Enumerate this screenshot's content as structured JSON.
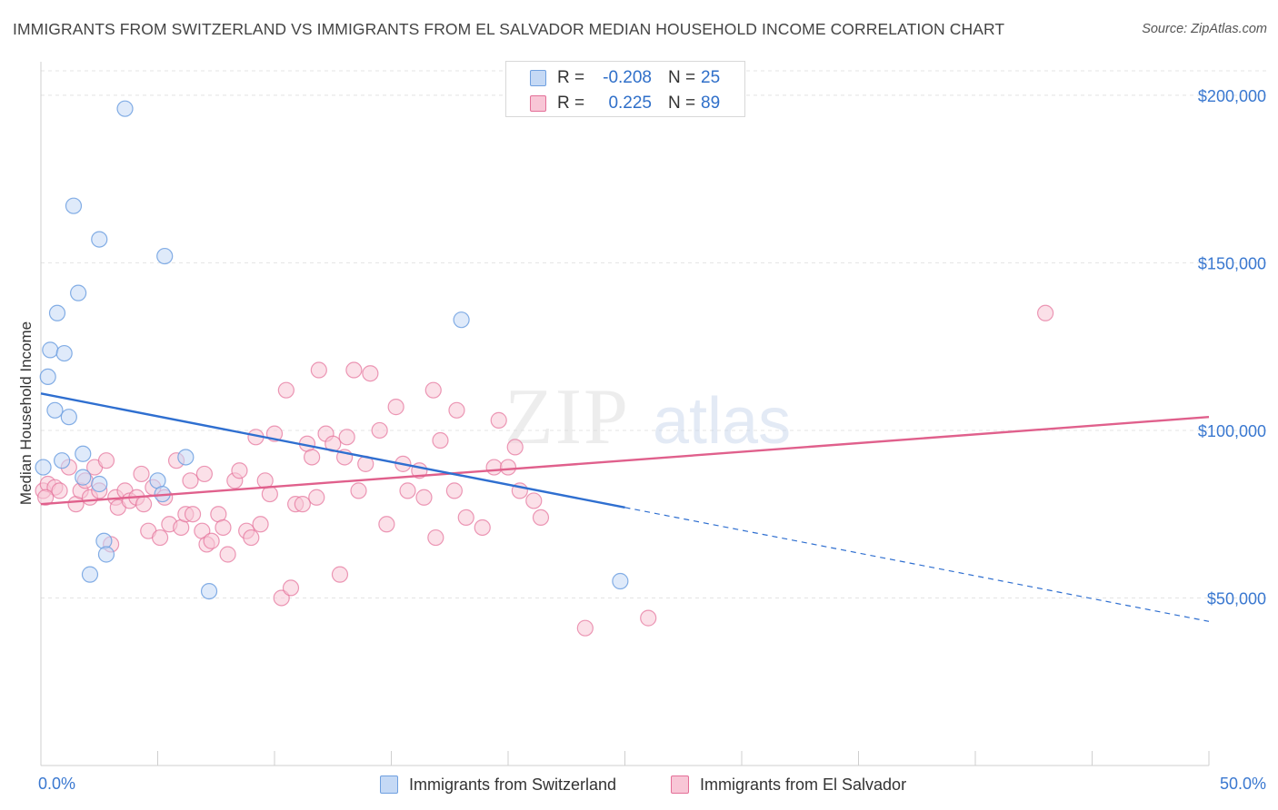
{
  "header": {
    "title": "IMMIGRANTS FROM SWITZERLAND VS IMMIGRANTS FROM EL SALVADOR MEDIAN HOUSEHOLD INCOME CORRELATION CHART",
    "source": "Source: ZipAtlas.com"
  },
  "watermark": {
    "zip": "ZIP",
    "atlas": "atlas"
  },
  "legend": {
    "r_label": "R =",
    "n_label": "N =",
    "series": [
      {
        "name": "Immigrants from Switzerland",
        "r": "-0.208",
        "n": "25"
      },
      {
        "name": "Immigrants from El Salvador",
        "r": "0.225",
        "n": "89"
      }
    ]
  },
  "colors": {
    "switzerland": "#6fa0e0",
    "switzerland_fill": "#c5d9f5",
    "el_salvador": "#e46f98",
    "el_salvador_fill": "#f8c6d6",
    "blue_line": "#2f6fd0",
    "pink_line": "#e0608c",
    "tick_label": "#3a78d0"
  },
  "chart_data": {
    "type": "scatter",
    "title": "IMMIGRANTS FROM SWITZERLAND VS IMMIGRANTS FROM EL SALVADOR MEDIAN HOUSEHOLD INCOME CORRELATION CHART",
    "xlabel": "",
    "ylabel": "Median Household Income",
    "xlim": [
      0,
      50
    ],
    "ylim": [
      0,
      210000
    ],
    "x_tick_labels": [
      "0.0%",
      "50.0%"
    ],
    "y_ticks": [
      50000,
      100000,
      150000,
      200000
    ],
    "y_tick_labels": [
      "$50,000",
      "$100,000",
      "$150,000",
      "$200,000"
    ],
    "grid": true,
    "legend_position": "top-center",
    "series": [
      {
        "name": "Immigrants from Switzerland",
        "r": -0.208,
        "n": 25,
        "points": [
          [
            0.1,
            89000
          ],
          [
            0.3,
            116000
          ],
          [
            0.4,
            124000
          ],
          [
            0.6,
            106000
          ],
          [
            0.7,
            135000
          ],
          [
            0.9,
            91000
          ],
          [
            1.0,
            123000
          ],
          [
            1.2,
            104000
          ],
          [
            1.4,
            167000
          ],
          [
            1.6,
            141000
          ],
          [
            1.8,
            93000
          ],
          [
            1.8,
            86000
          ],
          [
            2.1,
            57000
          ],
          [
            2.5,
            84000
          ],
          [
            2.5,
            157000
          ],
          [
            2.7,
            67000
          ],
          [
            2.8,
            63000
          ],
          [
            3.6,
            196000
          ],
          [
            5.0,
            85000
          ],
          [
            5.2,
            81000
          ],
          [
            5.3,
            152000
          ],
          [
            6.2,
            92000
          ],
          [
            7.2,
            52000
          ],
          [
            18.0,
            133000
          ],
          [
            24.8,
            55000
          ]
        ],
        "trend": {
          "x0": 0,
          "y0": 111000,
          "x1": 25,
          "y1": 77000,
          "dashed_to_x": 50,
          "dashed_to_y": 43000
        }
      },
      {
        "name": "Immigrants from El Salvador",
        "r": 0.225,
        "n": 89,
        "points": [
          [
            0.1,
            82000
          ],
          [
            0.3,
            84000
          ],
          [
            0.6,
            83000
          ],
          [
            0.8,
            82000
          ],
          [
            1.2,
            89000
          ],
          [
            1.5,
            78000
          ],
          [
            1.7,
            82000
          ],
          [
            1.9,
            85000
          ],
          [
            2.1,
            80000
          ],
          [
            2.3,
            89000
          ],
          [
            2.5,
            82000
          ],
          [
            2.8,
            91000
          ],
          [
            3.0,
            66000
          ],
          [
            3.2,
            80000
          ],
          [
            3.3,
            77000
          ],
          [
            3.6,
            82000
          ],
          [
            3.8,
            79000
          ],
          [
            4.1,
            80000
          ],
          [
            4.3,
            87000
          ],
          [
            4.4,
            78000
          ],
          [
            4.6,
            70000
          ],
          [
            4.8,
            83000
          ],
          [
            5.1,
            68000
          ],
          [
            5.3,
            80000
          ],
          [
            5.5,
            72000
          ],
          [
            5.8,
            91000
          ],
          [
            6.0,
            71000
          ],
          [
            6.2,
            75000
          ],
          [
            6.4,
            85000
          ],
          [
            6.5,
            75000
          ],
          [
            6.9,
            70000
          ],
          [
            7.0,
            87000
          ],
          [
            7.1,
            66000
          ],
          [
            7.3,
            67000
          ],
          [
            7.6,
            75000
          ],
          [
            7.8,
            71000
          ],
          [
            8.0,
            63000
          ],
          [
            8.3,
            85000
          ],
          [
            8.5,
            88000
          ],
          [
            8.8,
            70000
          ],
          [
            9.0,
            68000
          ],
          [
            9.2,
            98000
          ],
          [
            9.4,
            72000
          ],
          [
            9.6,
            85000
          ],
          [
            9.8,
            81000
          ],
          [
            10.0,
            99000
          ],
          [
            10.3,
            50000
          ],
          [
            10.5,
            112000
          ],
          [
            10.7,
            53000
          ],
          [
            10.9,
            78000
          ],
          [
            11.2,
            78000
          ],
          [
            11.4,
            96000
          ],
          [
            11.6,
            92000
          ],
          [
            11.8,
            80000
          ],
          [
            11.9,
            118000
          ],
          [
            12.2,
            99000
          ],
          [
            12.5,
            96000
          ],
          [
            12.8,
            57000
          ],
          [
            13.0,
            92000
          ],
          [
            13.1,
            98000
          ],
          [
            13.4,
            118000
          ],
          [
            13.6,
            82000
          ],
          [
            13.9,
            90000
          ],
          [
            14.1,
            117000
          ],
          [
            14.5,
            100000
          ],
          [
            14.8,
            72000
          ],
          [
            15.2,
            107000
          ],
          [
            15.5,
            90000
          ],
          [
            15.7,
            82000
          ],
          [
            16.2,
            88000
          ],
          [
            16.4,
            80000
          ],
          [
            16.8,
            112000
          ],
          [
            16.9,
            68000
          ],
          [
            17.1,
            97000
          ],
          [
            17.7,
            82000
          ],
          [
            17.8,
            106000
          ],
          [
            18.2,
            74000
          ],
          [
            18.9,
            71000
          ],
          [
            19.4,
            89000
          ],
          [
            19.6,
            103000
          ],
          [
            20.0,
            89000
          ],
          [
            20.3,
            95000
          ],
          [
            20.5,
            82000
          ],
          [
            21.1,
            79000
          ],
          [
            21.4,
            74000
          ],
          [
            23.3,
            41000
          ],
          [
            26.0,
            44000
          ],
          [
            43.0,
            135000
          ],
          [
            0.2,
            80000
          ]
        ],
        "trend": {
          "x0": 0,
          "y0": 78000,
          "x1": 50,
          "y1": 104000
        }
      }
    ]
  }
}
